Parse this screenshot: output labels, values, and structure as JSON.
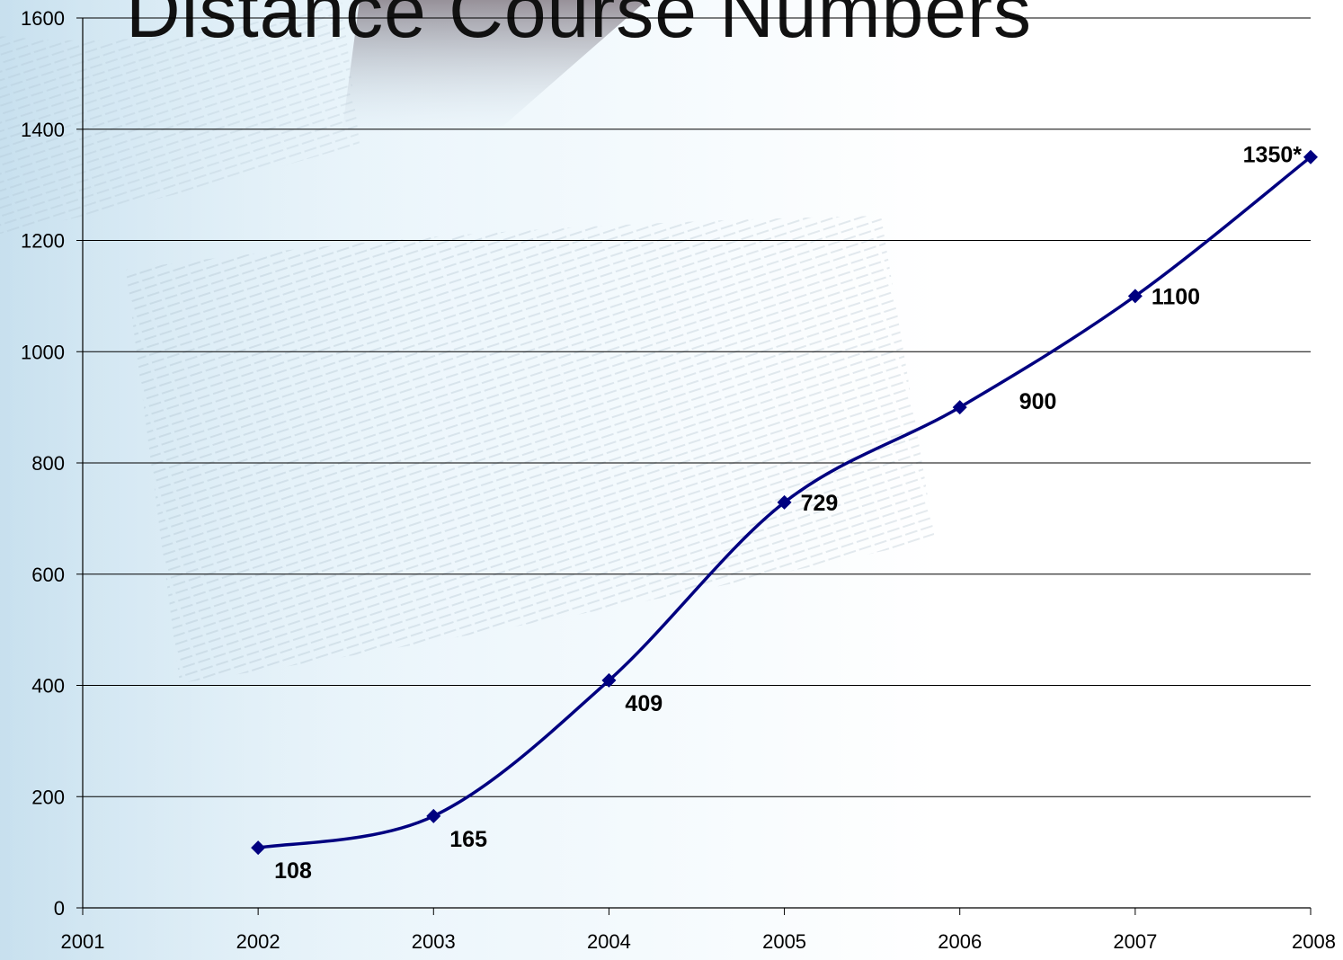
{
  "slide": {
    "title": "Distance Course Numbers"
  },
  "chart_data": {
    "type": "line",
    "title": "",
    "xlabel": "",
    "ylabel": "",
    "x_categories": [
      "2001",
      "2002",
      "2003",
      "2004",
      "2005",
      "2006",
      "2007",
      "2008"
    ],
    "ylim": [
      0,
      1600
    ],
    "yticks": [
      0,
      200,
      400,
      600,
      800,
      1000,
      1200,
      1400,
      1600
    ],
    "grid": true,
    "legend": "none",
    "series": [
      {
        "color": "#000080",
        "marker": "diamond",
        "smooth": true,
        "points": [
          {
            "x": "2002",
            "y": 108,
            "label": "108",
            "label_pos": "below-right"
          },
          {
            "x": "2003",
            "y": 165,
            "label": "165",
            "label_pos": "below-right"
          },
          {
            "x": "2004",
            "y": 409,
            "label": "409",
            "label_pos": "below-right"
          },
          {
            "x": "2005",
            "y": 729,
            "label": "729",
            "label_pos": "right"
          },
          {
            "x": "2006",
            "y": 900,
            "label": "900",
            "label_pos": "right"
          },
          {
            "x": "2007",
            "y": 1100,
            "label": "1100",
            "label_pos": "right"
          },
          {
            "x": "2008",
            "y": 1350,
            "label": "1350*",
            "label_pos": "left"
          }
        ]
      }
    ]
  }
}
